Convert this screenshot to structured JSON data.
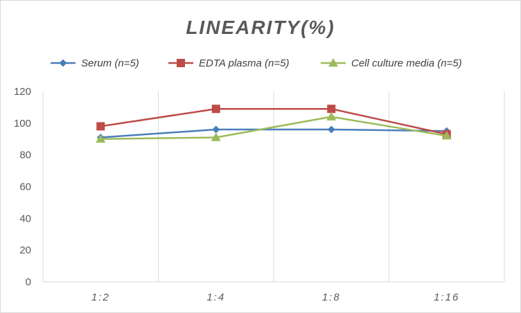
{
  "chart_data": {
    "type": "line",
    "title": "LINEARITY(%)",
    "xlabel": "",
    "ylabel": "",
    "categories": [
      "1:2",
      "1:4",
      "1:8",
      "1:16"
    ],
    "ylim": [
      0,
      120
    ],
    "yticks": [
      0,
      20,
      40,
      60,
      80,
      100,
      120
    ],
    "grid": "vertical",
    "legend_position": "top",
    "series": [
      {
        "name": "Serum (n=5)",
        "values": [
          91,
          96,
          96,
          95
        ],
        "color": "#4a7ebb",
        "marker": "diamond"
      },
      {
        "name": "EDTA plasma (n=5)",
        "values": [
          98,
          109,
          109,
          93
        ],
        "color": "#be4b48",
        "marker": "square"
      },
      {
        "name": "Cell culture media (n=5)",
        "values": [
          90,
          91,
          104,
          92
        ],
        "color": "#9bbb59",
        "marker": "triangle"
      }
    ]
  }
}
